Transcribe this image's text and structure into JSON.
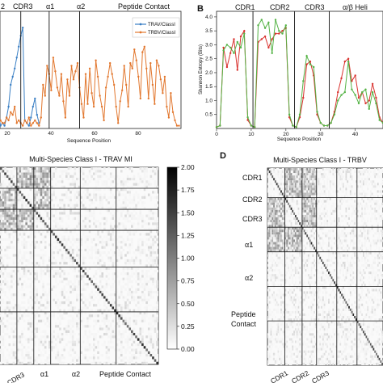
{
  "panels": {
    "a": {
      "letter": "",
      "region_labels": [
        "2",
        "CDR3",
        "α1",
        "α2",
        "Peptide Contact"
      ],
      "xlabel": "Sequence Position",
      "x_ticks": [
        "20",
        "40",
        "60",
        "80"
      ],
      "legend": [
        "TRAV/ClassI",
        "TRBV/ClassI"
      ]
    },
    "b": {
      "letter": "B",
      "region_labels": [
        "CDR1",
        "CDR2",
        "CDR3",
        "α/β Heli"
      ],
      "ylabel": "Shannon Entropy (Bits)",
      "xlabel": "Sequence Position",
      "y_ticks": [
        "0.5",
        "1.0",
        "1.5",
        "2.0",
        "2.5",
        "3.0",
        "3.5",
        "4.0"
      ],
      "x_ticks": [
        "0",
        "10",
        "20",
        "30",
        "40"
      ]
    },
    "c": {
      "letter": "",
      "title": "Multi-Species Class I - TRAV MI",
      "colorbar_ticks": [
        "2.00",
        "1.75",
        "1.50",
        "1.25",
        "1.00",
        "0.75",
        "0.50",
        "0.25",
        "0.00"
      ],
      "x_labels": [
        "CDR3",
        "α1",
        "α2",
        "Peptide Contact"
      ]
    },
    "d": {
      "letter": "D",
      "title": "Multi-Species Class I - TRBV",
      "y_labels": [
        "CDR1",
        "CDR2",
        "CDR3",
        "α1",
        "α2",
        "Peptide",
        "Contact"
      ],
      "x_labels": [
        "CDR1",
        "CDR2",
        "CDR3"
      ]
    }
  },
  "chart_data": [
    {
      "type": "line",
      "panel": "a",
      "xlabel": "Sequence Position",
      "ylabel": "",
      "xlim": [
        0,
        100
      ],
      "ylim": [
        0,
        4.3
      ],
      "regions": [
        "CDR3",
        "α1",
        "α2",
        "Peptide Contact"
      ],
      "series": [
        {
          "name": "TRAV/ClassI",
          "color": "#3a7fc4",
          "x": [
            0,
            1,
            2,
            3,
            4,
            5,
            6,
            7,
            8,
            9,
            10,
            11,
            12,
            13,
            14,
            15,
            16,
            17,
            18,
            19,
            20,
            21,
            22,
            23,
            24,
            25,
            26,
            27,
            28,
            29,
            30
          ],
          "y": [
            3.2,
            2.8,
            3.6,
            3.9,
            3.0,
            2.4,
            3.4,
            3.8,
            3.1,
            3.5,
            0.6,
            0.1,
            0.2,
            0.1,
            0.4,
            0.8,
            1.6,
            1.9,
            2.2,
            2.6,
            3.0,
            3.4,
            3.7,
            0.3,
            0.2,
            0.1,
            0.4,
            0.8,
            1.1,
            0.5,
            0.2
          ]
        },
        {
          "name": "TRBV/ClassI",
          "color": "#e2772e",
          "x": [
            0,
            1,
            2,
            3,
            4,
            5,
            6,
            7,
            8,
            9,
            10,
            11,
            12,
            13,
            14,
            15,
            16,
            17,
            18,
            19,
            20,
            21,
            22,
            23,
            24,
            25,
            26,
            27,
            28,
            29,
            30,
            31,
            32,
            33,
            34,
            35,
            36,
            37,
            38,
            39,
            40,
            41,
            42,
            43,
            44,
            45,
            46,
            47,
            48,
            49,
            50,
            51,
            52,
            53,
            54,
            55,
            56,
            57,
            58,
            59,
            60,
            61,
            62,
            63,
            64,
            65,
            66,
            67,
            68,
            69,
            70,
            71,
            72,
            73,
            74,
            75,
            76,
            77,
            78,
            79,
            80,
            81,
            82,
            83,
            84,
            85,
            86,
            87,
            88,
            89,
            90,
            91,
            92,
            93,
            94,
            95,
            96,
            97,
            98,
            99
          ],
          "y": [
            3.9,
            3.4,
            4.0,
            3.6,
            3.1,
            3.8,
            3.5,
            0.4,
            0.1,
            0.2,
            0.1,
            0.3,
            0.2,
            0.2,
            0.4,
            0.3,
            0.6,
            0.5,
            0.8,
            0.2,
            0.3,
            0.2,
            0.1,
            0.3,
            0.2,
            0.4,
            0.1,
            0.2,
            0.3,
            0.2,
            0.1,
            0.4,
            1.6,
            1.2,
            2.3,
            2.0,
            1.4,
            2.6,
            2.1,
            1.5,
            1.2,
            2.0,
            1.0,
            0.4,
            1.8,
            1.2,
            2.3,
            1.8,
            2.1,
            2.4,
            1.5,
            0.9,
            0.4,
            2.0,
            0.9,
            2.2,
            1.3,
            0.8,
            2.5,
            1.9,
            1.2,
            0.8,
            0.3,
            1.5,
            1.9,
            2.4,
            2.0,
            1.6,
            0.8,
            0.2,
            1.0,
            1.4,
            2.3,
            1.6,
            0.8,
            2.4,
            2.2,
            2.9,
            2.5,
            1.9,
            1.1,
            2.8,
            3.0,
            2.2,
            1.1,
            2.4,
            1.6,
            0.9,
            2.5,
            2.3,
            1.8,
            1.3,
            1.9,
            0.8,
            0.4,
            1.3,
            0.6,
            0.3,
            0.1,
            0.1
          ]
        }
      ]
    },
    {
      "type": "line",
      "panel": "b",
      "xlabel": "Sequence Position",
      "ylabel": "Shannon Entropy (Bits)",
      "xlim": [
        0,
        48
      ],
      "ylim": [
        0,
        4.2
      ],
      "regions": [
        "CDR1",
        "CDR2",
        "CDR3",
        "α/β Heli"
      ],
      "series": [
        {
          "name": "",
          "color": "#d9322e",
          "x": [
            0,
            1,
            2,
            3,
            4,
            5,
            6,
            7,
            8,
            9,
            10,
            11,
            12,
            13,
            14,
            15,
            16,
            17,
            18,
            19,
            20,
            21,
            22,
            23,
            24,
            25,
            26,
            27,
            28,
            29,
            30,
            31,
            32,
            33,
            34,
            35,
            36,
            37,
            38,
            39,
            40,
            41,
            42,
            43,
            44,
            45,
            46,
            47,
            48
          ],
          "y": [
            0.05,
            0.1,
            2.9,
            2.2,
            2.7,
            3.2,
            2.1,
            3.3,
            3.5,
            0.3,
            0.1,
            0.05,
            3.1,
            3.2,
            3.3,
            2.9,
            3.2,
            3.4,
            3.4,
            3.5,
            3.6,
            0.4,
            0.1,
            0.05,
            0.4,
            1.1,
            2.3,
            2.4,
            1.9,
            0.5,
            0.2,
            0.1,
            0.1,
            0.2,
            0.6,
            1.3,
            1.8,
            2.4,
            2.5,
            1.7,
            1.9,
            1.1,
            1.3,
            0.9,
            1.0,
            1.6,
            1.1,
            0.4,
            0.2
          ]
        },
        {
          "name": "",
          "color": "#54b345",
          "x": [
            0,
            1,
            2,
            3,
            4,
            5,
            6,
            7,
            8,
            9,
            10,
            11,
            12,
            13,
            14,
            15,
            16,
            17,
            18,
            19,
            20,
            21,
            22,
            23,
            24,
            25,
            26,
            27,
            28,
            29,
            30,
            31,
            32,
            33,
            34,
            35,
            36,
            37,
            38,
            39,
            40,
            41,
            42,
            43,
            44,
            45,
            46,
            47,
            48
          ],
          "y": [
            0.05,
            0.1,
            2.8,
            3.0,
            2.9,
            2.7,
            3.1,
            2.9,
            3.4,
            0.4,
            0.1,
            0.05,
            3.7,
            3.9,
            3.6,
            3.8,
            2.7,
            3.9,
            3.5,
            3.4,
            3.7,
            0.5,
            0.1,
            0.05,
            0.5,
            1.7,
            2.6,
            2.3,
            2.2,
            0.6,
            0.2,
            0.1,
            0.1,
            0.2,
            0.5,
            1.0,
            1.2,
            1.3,
            2.4,
            1.4,
            1.2,
            0.9,
            1.3,
            1.4,
            0.7,
            1.3,
            0.9,
            0.3,
            0.2
          ]
        }
      ]
    },
    {
      "type": "heatmap",
      "panel": "c",
      "title": "Multi-Species Class I - TRAV MI",
      "colorbar_range": [
        0,
        2.0
      ],
      "x_labels": [
        "CDR3",
        "α1",
        "α2",
        "Peptide Contact"
      ]
    },
    {
      "type": "heatmap",
      "panel": "d",
      "title": "Multi-Species Class I - TRBV",
      "y_labels": [
        "CDR1",
        "CDR2",
        "CDR3",
        "α1",
        "α2",
        "Peptide Contact"
      ],
      "x_labels": [
        "CDR1",
        "CDR2",
        "CDR3"
      ]
    }
  ]
}
